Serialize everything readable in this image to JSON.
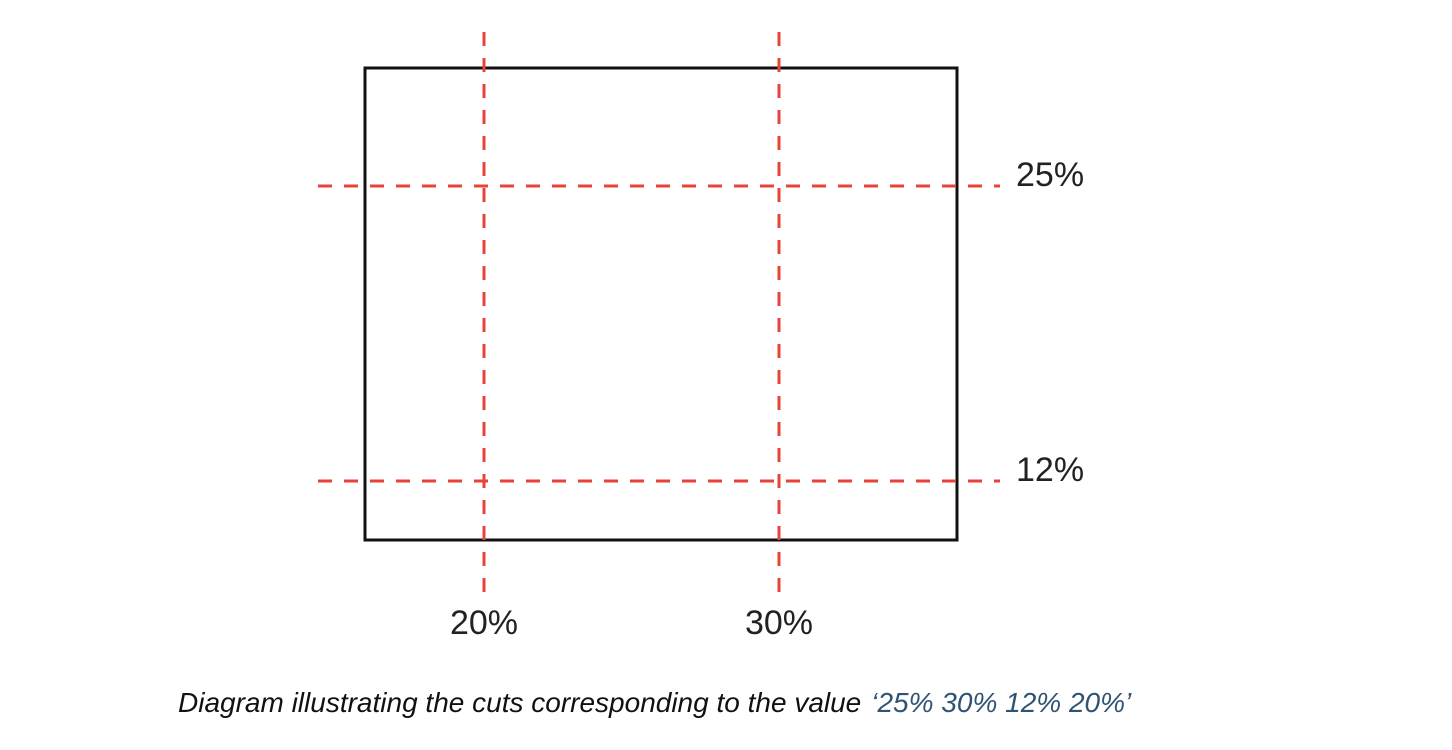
{
  "diagram": {
    "horizontal_cuts": [
      "25%",
      "12%"
    ],
    "vertical_cuts": [
      "20%",
      "30%"
    ],
    "caption": {
      "text": "Diagram illustrating the cuts corresponding to the value",
      "value": "‘25% 30% 12% 20%’"
    }
  }
}
